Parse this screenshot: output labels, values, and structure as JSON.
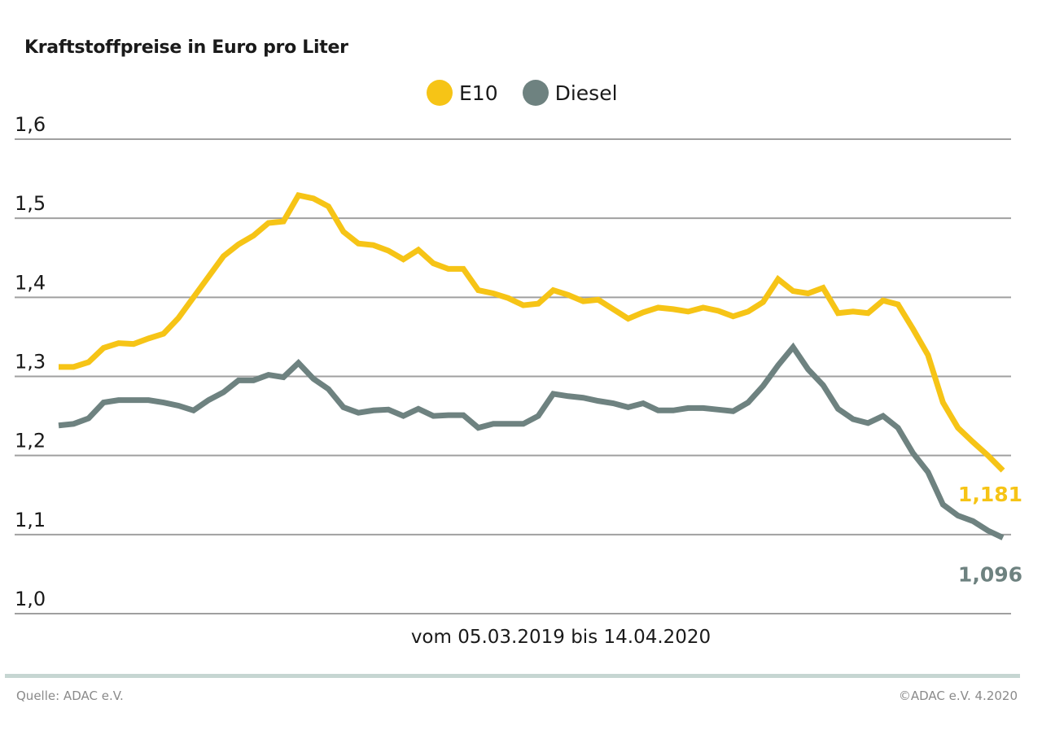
{
  "colors": {
    "e10": "#f6c416",
    "diesel": "#6e8280",
    "grid": "#a0a0a0",
    "rule": "#c6d6d2"
  },
  "footer": {
    "source": "Quelle: ADAC e.V.",
    "copyright": "©ADAC e.V. 4.2020"
  },
  "chart_data": {
    "type": "line",
    "title": "Kraftstoffpreise in Euro pro Liter",
    "xlabel": "vom 05.03.2019 bis 14.04.2020",
    "ylabel": "",
    "ylim": [
      1.0,
      1.6
    ],
    "yticks": [
      "1,0",
      "1,1",
      "1,2",
      "1,3",
      "1,4",
      "1,5",
      "1,6"
    ],
    "grid": true,
    "legend_position": "top-center",
    "series": [
      {
        "name": "E10",
        "end_label": "1,181",
        "values": [
          1.312,
          1.312,
          1.318,
          1.336,
          1.342,
          1.341,
          1.348,
          1.354,
          1.374,
          1.4,
          1.426,
          1.452,
          1.467,
          1.478,
          1.494,
          1.496,
          1.529,
          1.525,
          1.515,
          1.483,
          1.468,
          1.466,
          1.459,
          1.448,
          1.46,
          1.443,
          1.436,
          1.436,
          1.409,
          1.405,
          1.399,
          1.39,
          1.392,
          1.409,
          1.403,
          1.395,
          1.397,
          1.385,
          1.373,
          1.381,
          1.387,
          1.385,
          1.382,
          1.387,
          1.383,
          1.376,
          1.382,
          1.394,
          1.423,
          1.408,
          1.405,
          1.412,
          1.38,
          1.382,
          1.38,
          1.396,
          1.391,
          1.36,
          1.327,
          1.267,
          1.235,
          1.217,
          1.2,
          1.181
        ]
      },
      {
        "name": "Diesel",
        "end_label": "1,096",
        "values": [
          1.238,
          1.24,
          1.247,
          1.267,
          1.27,
          1.27,
          1.27,
          1.267,
          1.263,
          1.257,
          1.27,
          1.28,
          1.295,
          1.295,
          1.302,
          1.299,
          1.317,
          1.297,
          1.284,
          1.261,
          1.254,
          1.257,
          1.258,
          1.25,
          1.259,
          1.25,
          1.251,
          1.251,
          1.235,
          1.24,
          1.24,
          1.24,
          1.25,
          1.278,
          1.275,
          1.273,
          1.269,
          1.266,
          1.261,
          1.266,
          1.257,
          1.257,
          1.26,
          1.26,
          1.258,
          1.256,
          1.267,
          1.288,
          1.314,
          1.337,
          1.309,
          1.289,
          1.259,
          1.246,
          1.241,
          1.25,
          1.235,
          1.203,
          1.179,
          1.138,
          1.124,
          1.117,
          1.105,
          1.096
        ]
      }
    ]
  }
}
